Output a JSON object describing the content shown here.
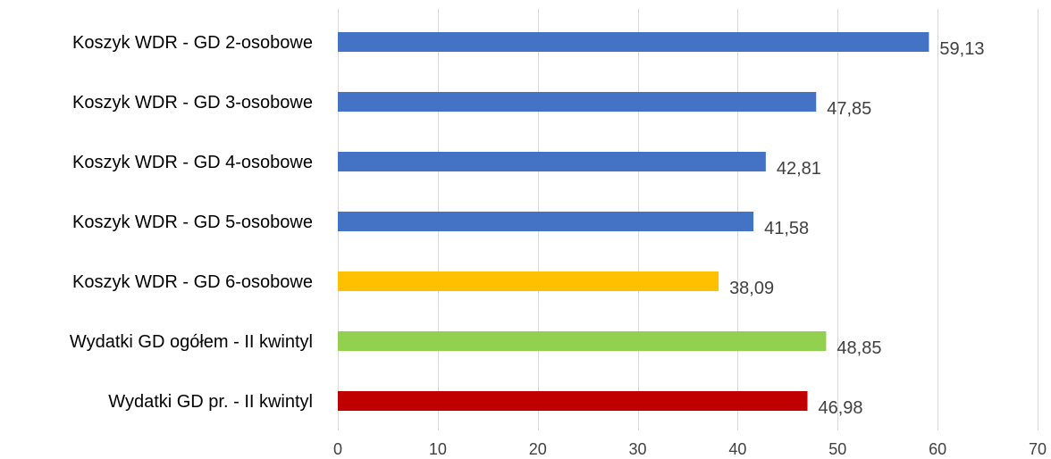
{
  "chart_data": {
    "type": "bar",
    "orientation": "horizontal",
    "categories": [
      "Koszyk WDR - GD 2-osobowe",
      "Koszyk WDR - GD 3-osobowe",
      "Koszyk WDR - GD 4-osobowe",
      "Koszyk WDR - GD 5-osobowe",
      "Koszyk WDR - GD 6-osobowe",
      "Wydatki GD ogółem - II kwintyl",
      "Wydatki GD pr. - II kwintyl"
    ],
    "values": [
      59.13,
      47.85,
      42.81,
      41.58,
      38.09,
      48.85,
      46.98
    ],
    "data_labels": [
      "59,13",
      "47,85",
      "42,81",
      "41,58",
      "38,09",
      "48,85",
      "46,98"
    ],
    "bar_colors": [
      "#4472C4",
      "#4472C4",
      "#4472C4",
      "#4472C4",
      "#FFC000",
      "#92D050",
      "#C00000"
    ],
    "xlim": [
      0,
      70
    ],
    "x_ticks": [
      0,
      10,
      20,
      30,
      40,
      50,
      60,
      70
    ],
    "grid": true,
    "legend": "none",
    "title": "",
    "xlabel": "",
    "ylabel": ""
  }
}
